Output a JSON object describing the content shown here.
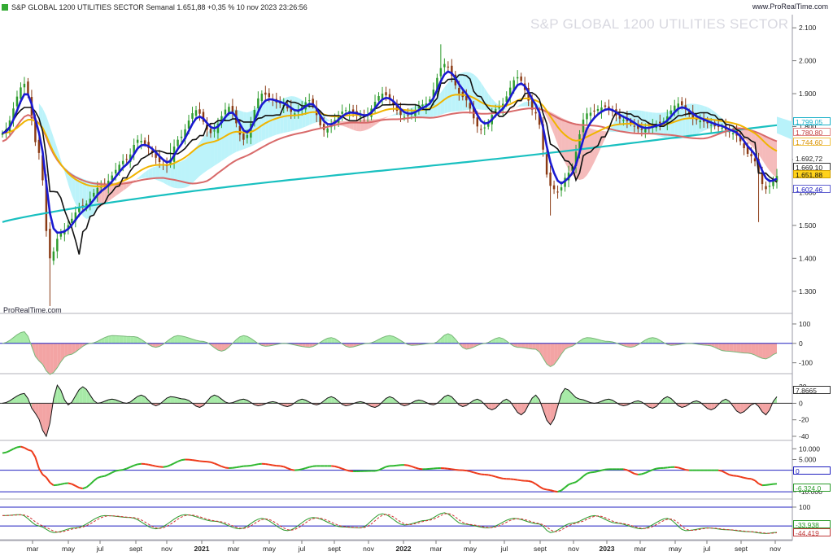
{
  "header": {
    "title": "S&P GLOBAL 1200 UTILITIES SECTOR Semanal 1.651,88 +0,35 % 10 nov 2023 23:26:56",
    "source": "www.ProRealTime.com"
  },
  "watermark": "S&P GLOBAL 1200 UTILITIES SECTOR",
  "brand_small": "ProRealTime.com",
  "colors": {
    "up": "#2e9c2e",
    "down": "#8a3a14",
    "ma_blue": "#1a1ad0",
    "ma_black": "#111111",
    "ma_orange": "#f0b400",
    "ma_red": "#d86a6a",
    "ma_teal": "#19c0c0",
    "cloud": "#b8f2fa",
    "cloud_red": "#f4b4b4"
  },
  "price_badges": [
    {
      "text": "1.799,05",
      "bg": "#ffffff",
      "fg": "#1ab0c8",
      "border": "#1ab0c8",
      "top": 144
    },
    {
      "text": "1.780,80",
      "bg": "#ffffff",
      "fg": "#c03a3a",
      "border": "#e08888",
      "top": 157
    },
    {
      "text": "1.744,60",
      "bg": "#ffffff",
      "fg": "#d89000",
      "border": "#f0c040",
      "top": 169
    },
    {
      "text": "1.692,72",
      "bg": "#ffffff",
      "fg": "#222222",
      "border": "#ffffff",
      "top": 189
    },
    {
      "text": "1.669,10",
      "bg": "#ffffff",
      "fg": "#111111",
      "border": "#333333",
      "top": 200
    },
    {
      "text": "1.651,88",
      "bg": "#ffd21a",
      "fg": "#111111",
      "border": "#d0a000",
      "top": 209
    },
    {
      "text": "1.602,46",
      "bg": "#ffffff",
      "fg": "#2020c0",
      "border": "#6060d0",
      "top": 227
    }
  ],
  "panel_badges": [
    {
      "text": "7,8665",
      "bg": "#ffffff",
      "fg": "#222222",
      "border": "#333333",
      "top": 474
    },
    {
      "text": "0",
      "bg": "#ffffff",
      "fg": "#2020c0",
      "border": "#2020c0",
      "top": 573
    },
    {
      "text": "-6.324,0",
      "bg": "#ffffff",
      "fg": "#2a9a2a",
      "border": "#2a9a2a",
      "top": 594
    },
    {
      "text": "-33,938",
      "bg": "#ffffff",
      "fg": "#2a9a2a",
      "border": "#2a9a2a",
      "top": 639
    },
    {
      "text": "-44,419",
      "bg": "#ffffff",
      "fg": "#c03a3a",
      "border": "#c03a3a",
      "top": 649
    }
  ],
  "chart_data": [
    {
      "type": "candlestick",
      "name": "price",
      "ylim": [
        1250,
        2130
      ],
      "yticks": [
        {
          "v": 2100,
          "label": "2.100"
        },
        {
          "v": 2000,
          "label": "2.000"
        },
        {
          "v": 1900,
          "label": "1.900"
        },
        {
          "v": 1800,
          "label": "1.800"
        },
        {
          "v": 1700,
          "label": "1.700"
        },
        {
          "v": 1600,
          "label": "1.600"
        },
        {
          "v": 1500,
          "label": "1.500"
        },
        {
          "v": 1400,
          "label": "1.400"
        },
        {
          "v": 1300,
          "label": "1.300"
        }
      ],
      "anchors": [
        [
          0,
          1780
        ],
        [
          6,
          1930
        ],
        [
          10,
          1720
        ],
        [
          13,
          1400
        ],
        [
          16,
          1480
        ],
        [
          22,
          1560
        ],
        [
          27,
          1620
        ],
        [
          34,
          1700
        ],
        [
          37,
          1760
        ],
        [
          45,
          1680
        ],
        [
          48,
          1760
        ],
        [
          53,
          1850
        ],
        [
          57,
          1780
        ],
        [
          62,
          1860
        ],
        [
          66,
          1760
        ],
        [
          71,
          1900
        ],
        [
          76,
          1870
        ],
        [
          80,
          1840
        ],
        [
          84,
          1880
        ],
        [
          88,
          1790
        ],
        [
          94,
          1850
        ],
        [
          99,
          1830
        ],
        [
          104,
          1900
        ],
        [
          110,
          1830
        ],
        [
          116,
          1870
        ],
        [
          121,
          1990
        ],
        [
          126,
          1890
        ],
        [
          131,
          1790
        ],
        [
          136,
          1860
        ],
        [
          141,
          1950
        ],
        [
          146,
          1840
        ],
        [
          150,
          1620
        ],
        [
          152,
          1600
        ],
        [
          155,
          1660
        ],
        [
          160,
          1840
        ],
        [
          165,
          1860
        ],
        [
          170,
          1820
        ],
        [
          175,
          1790
        ],
        [
          180,
          1810
        ],
        [
          185,
          1870
        ],
        [
          190,
          1820
        ],
        [
          196,
          1800
        ],
        [
          200,
          1780
        ],
        [
          205,
          1710
        ],
        [
          209,
          1610
        ],
        [
          212,
          1650
        ]
      ],
      "ranges": [
        [
          13,
          1255
        ],
        [
          13,
          1330
        ],
        [
          46,
          1750
        ],
        [
          120,
          2050
        ],
        [
          150,
          1530
        ],
        [
          207,
          1510
        ],
        [
          174,
          1780
        ]
      ]
    },
    {
      "type": "line",
      "name": "oscillator-1",
      "ylim": [
        -135,
        125
      ],
      "yticks": [
        {
          "v": 100,
          "label": "100"
        },
        {
          "v": 0,
          "label": "0"
        },
        {
          "v": -100,
          "label": "-100"
        }
      ],
      "anchors": [
        [
          0,
          0
        ],
        [
          6,
          60
        ],
        [
          10,
          -90
        ],
        [
          13,
          -160
        ],
        [
          18,
          -60
        ],
        [
          24,
          0
        ],
        [
          30,
          40
        ],
        [
          36,
          35
        ],
        [
          42,
          -20
        ],
        [
          48,
          40
        ],
        [
          55,
          10
        ],
        [
          60,
          -40
        ],
        [
          66,
          40
        ],
        [
          72,
          -15
        ],
        [
          77,
          0
        ],
        [
          84,
          -20
        ],
        [
          90,
          30
        ],
        [
          95,
          -20
        ],
        [
          100,
          0
        ],
        [
          106,
          40
        ],
        [
          112,
          -10
        ],
        [
          118,
          0
        ],
        [
          122,
          50
        ],
        [
          127,
          -30
        ],
        [
          132,
          0
        ],
        [
          136,
          30
        ],
        [
          141,
          -20
        ],
        [
          146,
          -30
        ],
        [
          150,
          -120
        ],
        [
          155,
          -20
        ],
        [
          160,
          30
        ],
        [
          166,
          10
        ],
        [
          172,
          -20
        ],
        [
          178,
          30
        ],
        [
          183,
          -10
        ],
        [
          188,
          0
        ],
        [
          193,
          -10
        ],
        [
          198,
          -40
        ],
        [
          204,
          -50
        ],
        [
          209,
          -80
        ],
        [
          212,
          -50
        ]
      ]
    },
    {
      "type": "line",
      "name": "oscillator-2",
      "ylim": [
        -42,
        30
      ],
      "yticks": [
        {
          "v": 20,
          "label": "20"
        },
        {
          "v": 0,
          "label": "0"
        },
        {
          "v": -20,
          "label": "-20"
        },
        {
          "v": -40,
          "label": "-40"
        }
      ],
      "anchors": [
        [
          0,
          0
        ],
        [
          6,
          12
        ],
        [
          9,
          -12
        ],
        [
          12,
          -40
        ],
        [
          15,
          22
        ],
        [
          18,
          -2
        ],
        [
          22,
          20
        ],
        [
          26,
          0
        ],
        [
          30,
          5
        ],
        [
          34,
          0
        ],
        [
          38,
          10
        ],
        [
          42,
          -3
        ],
        [
          46,
          8
        ],
        [
          50,
          5
        ],
        [
          54,
          -5
        ],
        [
          58,
          10
        ],
        [
          62,
          0
        ],
        [
          66,
          5
        ],
        [
          70,
          -3
        ],
        [
          74,
          2
        ],
        [
          78,
          -4
        ],
        [
          82,
          5
        ],
        [
          86,
          -2
        ],
        [
          90,
          8
        ],
        [
          94,
          -3
        ],
        [
          98,
          2
        ],
        [
          102,
          -5
        ],
        [
          106,
          8
        ],
        [
          110,
          -3
        ],
        [
          114,
          4
        ],
        [
          118,
          -2
        ],
        [
          122,
          10
        ],
        [
          126,
          -4
        ],
        [
          130,
          5
        ],
        [
          134,
          -8
        ],
        [
          138,
          5
        ],
        [
          142,
          -14
        ],
        [
          146,
          10
        ],
        [
          150,
          -26
        ],
        [
          154,
          18
        ],
        [
          158,
          5
        ],
        [
          162,
          0
        ],
        [
          166,
          5
        ],
        [
          170,
          -3
        ],
        [
          174,
          3
        ],
        [
          178,
          -6
        ],
        [
          182,
          8
        ],
        [
          186,
          -5
        ],
        [
          190,
          3
        ],
        [
          194,
          -8
        ],
        [
          198,
          5
        ],
        [
          202,
          -12
        ],
        [
          206,
          0
        ],
        [
          209,
          -14
        ],
        [
          212,
          8
        ]
      ]
    },
    {
      "type": "line",
      "name": "oscillator-3",
      "ylim": [
        -13000,
        12000
      ],
      "yticks": [
        {
          "v": 10000,
          "label": "10.000"
        },
        {
          "v": 5000,
          "label": "5.000"
        },
        {
          "v": 0,
          "label": "0"
        },
        {
          "v": -10000,
          "label": "-10.000"
        }
      ],
      "anchors": [
        [
          0,
          8000
        ],
        [
          5,
          11000
        ],
        [
          8,
          9000
        ],
        [
          11,
          -2000
        ],
        [
          14,
          -7000
        ],
        [
          18,
          -6000
        ],
        [
          22,
          -8500
        ],
        [
          27,
          -3000
        ],
        [
          32,
          0
        ],
        [
          38,
          3000
        ],
        [
          44,
          1500
        ],
        [
          50,
          5000
        ],
        [
          56,
          4000
        ],
        [
          62,
          1000
        ],
        [
          67,
          2000
        ],
        [
          71,
          3000
        ],
        [
          76,
          2000
        ],
        [
          80,
          0
        ],
        [
          86,
          2000
        ],
        [
          90,
          2000
        ],
        [
          96,
          -500
        ],
        [
          102,
          -300
        ],
        [
          106,
          2000
        ],
        [
          110,
          2500
        ],
        [
          115,
          500
        ],
        [
          120,
          1000
        ],
        [
          126,
          0
        ],
        [
          132,
          -2000
        ],
        [
          138,
          -4000
        ],
        [
          144,
          -5000
        ],
        [
          149,
          -9000
        ],
        [
          152,
          -10000
        ],
        [
          156,
          -6000
        ],
        [
          161,
          -1000
        ],
        [
          166,
          500
        ],
        [
          170,
          500
        ],
        [
          174,
          -2000
        ],
        [
          180,
          1000
        ],
        [
          184,
          1500
        ],
        [
          188,
          0
        ],
        [
          192,
          0
        ],
        [
          196,
          0
        ],
        [
          200,
          -2500
        ],
        [
          205,
          -4000
        ],
        [
          208,
          -7000
        ],
        [
          212,
          -6300
        ]
      ]
    },
    {
      "type": "line",
      "name": "oscillator-4",
      "ylim": [
        -60,
        130
      ],
      "yticks": [
        {
          "v": 100,
          "label": "100"
        }
      ],
      "anchors": [
        [
          0,
          55
        ],
        [
          5,
          60
        ],
        [
          10,
          0
        ],
        [
          14,
          -35
        ],
        [
          20,
          -10
        ],
        [
          28,
          55
        ],
        [
          35,
          45
        ],
        [
          42,
          -15
        ],
        [
          50,
          60
        ],
        [
          58,
          25
        ],
        [
          65,
          -15
        ],
        [
          71,
          40
        ],
        [
          78,
          -25
        ],
        [
          85,
          45
        ],
        [
          93,
          -5
        ],
        [
          98,
          -10
        ],
        [
          104,
          65
        ],
        [
          110,
          5
        ],
        [
          116,
          30
        ],
        [
          121,
          70
        ],
        [
          126,
          10
        ],
        [
          133,
          -10
        ],
        [
          140,
          40
        ],
        [
          147,
          10
        ],
        [
          150,
          -35
        ],
        [
          156,
          15
        ],
        [
          162,
          55
        ],
        [
          168,
          15
        ],
        [
          175,
          -15
        ],
        [
          182,
          40
        ],
        [
          187,
          -25
        ],
        [
          193,
          -10
        ],
        [
          198,
          -20
        ],
        [
          204,
          -30
        ],
        [
          209,
          -40
        ],
        [
          212,
          -34
        ]
      ]
    }
  ],
  "x_axis": {
    "labels": [
      {
        "text": "mar",
        "bold": false
      },
      {
        "text": "may",
        "bold": false
      },
      {
        "text": "jul",
        "bold": false
      },
      {
        "text": "sept",
        "bold": false
      },
      {
        "text": "nov",
        "bold": false
      },
      {
        "text": "2021",
        "bold": true
      },
      {
        "text": "mar",
        "bold": false
      },
      {
        "text": "may",
        "bold": false
      },
      {
        "text": "jul",
        "bold": false
      },
      {
        "text": "sept",
        "bold": false
      },
      {
        "text": "nov",
        "bold": false
      },
      {
        "text": "2022",
        "bold": true
      },
      {
        "text": "mar",
        "bold": false
      },
      {
        "text": "may",
        "bold": false
      },
      {
        "text": "jul",
        "bold": false
      },
      {
        "text": "sept",
        "bold": false
      },
      {
        "text": "nov",
        "bold": false
      },
      {
        "text": "2023",
        "bold": true
      },
      {
        "text": "mar",
        "bold": false
      },
      {
        "text": "may",
        "bold": false
      },
      {
        "text": "jul",
        "bold": false
      },
      {
        "text": "sept",
        "bold": false
      },
      {
        "text": "nov",
        "bold": false
      }
    ]
  }
}
